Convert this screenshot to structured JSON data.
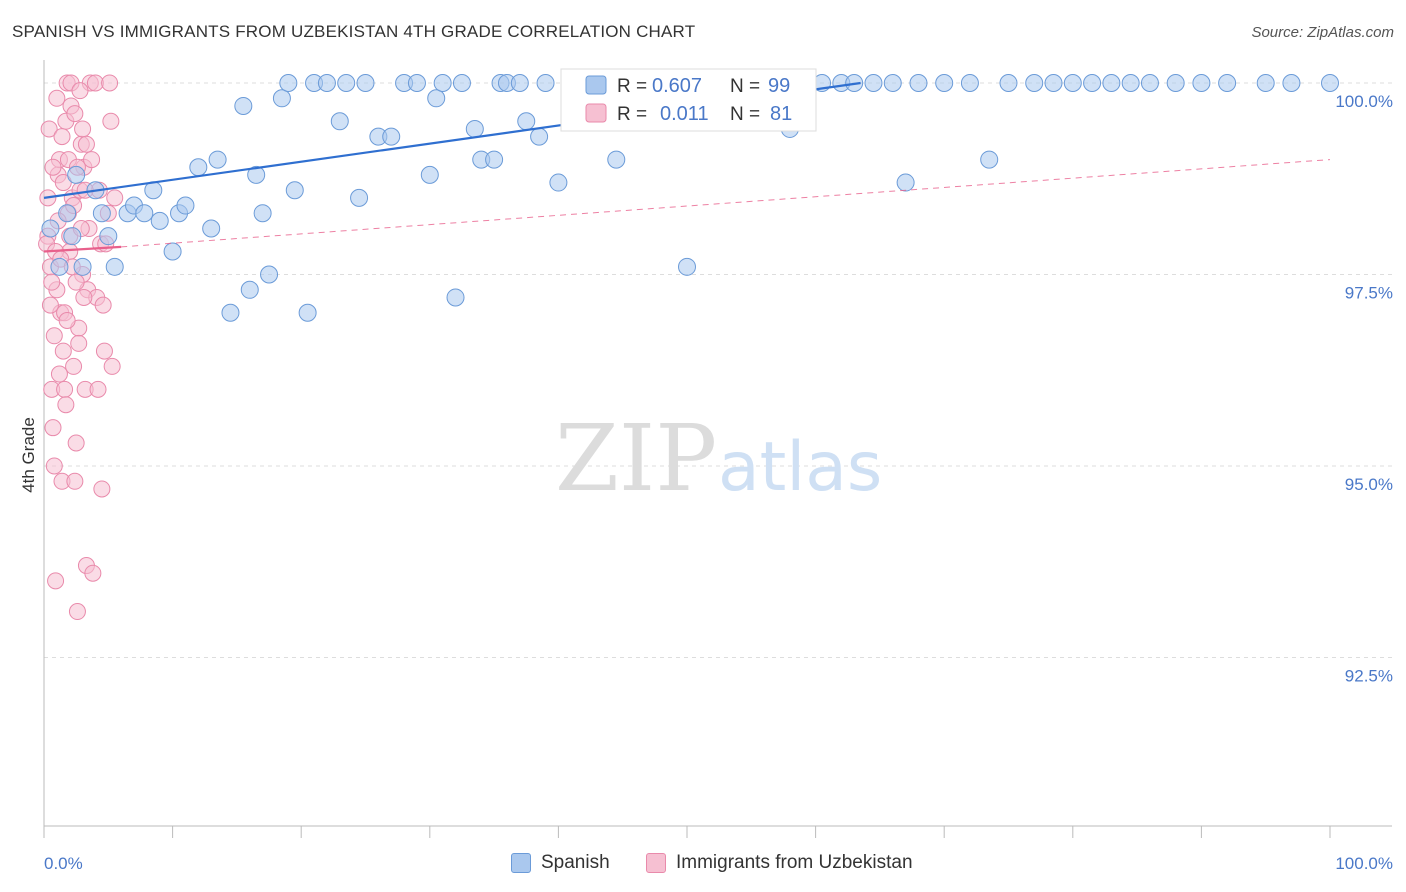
{
  "title": "SPANISH VS IMMIGRANTS FROM UZBEKISTAN 4TH GRADE CORRELATION CHART",
  "source": "Source: ZipAtlas.com",
  "watermark": {
    "zip": "ZIP",
    "atlas": "atlas"
  },
  "colors": {
    "blue_fill": "#aac8ee",
    "blue_stroke": "#6b9bd8",
    "blue_line": "#2f6fd0",
    "pink_fill": "#f6c0d2",
    "pink_stroke": "#e98aab",
    "pink_line": "#e8608c",
    "axis_text": "#4a78c8",
    "grid": "#dddddd"
  },
  "legend": {
    "r_label": "R =",
    "n_label": "N =",
    "series": [
      {
        "name": "Spanish",
        "r": "0.607",
        "n": "99"
      },
      {
        "name": "Immigrants from Uzbekistan",
        "r": "0.011",
        "n": "81"
      }
    ]
  },
  "chart_data": {
    "type": "scatter",
    "title": "SPANISH VS IMMIGRANTS FROM UZBEKISTAN 4TH GRADE CORRELATION CHART",
    "xlabel": "",
    "ylabel": "4th Grade",
    "xlim": [
      0,
      100
    ],
    "ylim": [
      90.3,
      100.3
    ],
    "x_tick_labels": [
      "0.0%",
      "100.0%"
    ],
    "y_ticks": [
      92.5,
      95.0,
      97.5,
      100.0
    ],
    "y_tick_labels": [
      "92.5%",
      "95.0%",
      "97.5%",
      "100.0%"
    ],
    "grid": true,
    "legend_position": "top-center",
    "series": [
      {
        "name": "Spanish",
        "trend": {
          "x": [
            0,
            63.5
          ],
          "y": [
            98.5,
            100.0
          ],
          "style": "solid"
        },
        "points": [
          [
            0.5,
            98.1
          ],
          [
            1.2,
            97.6
          ],
          [
            1.8,
            98.3
          ],
          [
            2.2,
            98.0
          ],
          [
            2.5,
            98.8
          ],
          [
            3.0,
            97.6
          ],
          [
            4.0,
            98.6
          ],
          [
            4.5,
            98.3
          ],
          [
            5.0,
            98.0
          ],
          [
            5.5,
            97.6
          ],
          [
            6.5,
            98.3
          ],
          [
            7.0,
            98.4
          ],
          [
            7.8,
            98.3
          ],
          [
            8.5,
            98.6
          ],
          [
            9.0,
            98.2
          ],
          [
            10.0,
            97.8
          ],
          [
            10.5,
            98.3
          ],
          [
            11.0,
            98.4
          ],
          [
            12.0,
            98.9
          ],
          [
            13.0,
            98.1
          ],
          [
            13.5,
            99.0
          ],
          [
            14.5,
            97.0
          ],
          [
            15.5,
            99.7
          ],
          [
            16.0,
            97.3
          ],
          [
            16.5,
            98.8
          ],
          [
            17.0,
            98.3
          ],
          [
            17.5,
            97.5
          ],
          [
            18.5,
            99.8
          ],
          [
            19.0,
            100.0
          ],
          [
            19.5,
            98.6
          ],
          [
            20.5,
            97.0
          ],
          [
            21.0,
            100.0
          ],
          [
            22.0,
            100.0
          ],
          [
            23.0,
            99.5
          ],
          [
            23.5,
            100.0
          ],
          [
            24.5,
            98.5
          ],
          [
            25.0,
            100.0
          ],
          [
            26.0,
            99.3
          ],
          [
            27.0,
            99.3
          ],
          [
            28.0,
            100.0
          ],
          [
            29.0,
            100.0
          ],
          [
            30.0,
            98.8
          ],
          [
            30.5,
            99.8
          ],
          [
            31.0,
            100.0
          ],
          [
            32.0,
            97.2
          ],
          [
            32.5,
            100.0
          ],
          [
            33.5,
            99.4
          ],
          [
            34.0,
            99.0
          ],
          [
            35.0,
            99.0
          ],
          [
            35.5,
            100.0
          ],
          [
            36.0,
            100.0
          ],
          [
            37.0,
            100.0
          ],
          [
            37.5,
            99.5
          ],
          [
            38.5,
            99.3
          ],
          [
            39.0,
            100.0
          ],
          [
            40.0,
            98.7
          ],
          [
            41.0,
            100.0
          ],
          [
            42.0,
            99.6
          ],
          [
            42.5,
            100.0
          ],
          [
            43.5,
            100.0
          ],
          [
            44.5,
            99.0
          ],
          [
            45.0,
            100.0
          ],
          [
            46.0,
            100.0
          ],
          [
            47.0,
            100.0
          ],
          [
            47.5,
            100.0
          ],
          [
            48.0,
            100.0
          ],
          [
            49.0,
            100.0
          ],
          [
            50.0,
            97.6
          ],
          [
            51.0,
            99.8
          ],
          [
            52.0,
            100.0
          ],
          [
            53.5,
            100.0
          ],
          [
            55.0,
            100.0
          ],
          [
            56.5,
            100.0
          ],
          [
            58.0,
            99.4
          ],
          [
            59.0,
            100.0
          ],
          [
            60.5,
            100.0
          ],
          [
            62.0,
            100.0
          ],
          [
            63.0,
            100.0
          ],
          [
            64.5,
            100.0
          ],
          [
            66.0,
            100.0
          ],
          [
            67.0,
            98.7
          ],
          [
            68.0,
            100.0
          ],
          [
            70.0,
            100.0
          ],
          [
            72.0,
            100.0
          ],
          [
            73.5,
            99.0
          ],
          [
            75.0,
            100.0
          ],
          [
            77.0,
            100.0
          ],
          [
            78.5,
            100.0
          ],
          [
            80.0,
            100.0
          ],
          [
            81.5,
            100.0
          ],
          [
            83.0,
            100.0
          ],
          [
            84.5,
            100.0
          ],
          [
            86.0,
            100.0
          ],
          [
            88.0,
            100.0
          ],
          [
            90.0,
            100.0
          ],
          [
            92.0,
            100.0
          ],
          [
            95.0,
            100.0
          ],
          [
            97.0,
            100.0
          ],
          [
            100.0,
            100.0
          ]
        ]
      },
      {
        "name": "Immigrants from Uzbekistan",
        "trend_solid": {
          "x": [
            0,
            6
          ],
          "y": [
            97.8,
            97.86
          ],
          "style": "solid"
        },
        "trend_dashed": {
          "x": [
            6,
            100
          ],
          "y": [
            97.86,
            99.0
          ],
          "style": "dashed"
        },
        "points": [
          [
            0.3,
            98.0
          ],
          [
            0.5,
            97.6
          ],
          [
            0.6,
            96.0
          ],
          [
            0.7,
            95.5
          ],
          [
            0.8,
            95.0
          ],
          [
            0.9,
            93.5
          ],
          [
            1.0,
            97.3
          ],
          [
            1.1,
            98.8
          ],
          [
            1.2,
            99.0
          ],
          [
            1.3,
            97.0
          ],
          [
            1.4,
            94.8
          ],
          [
            1.5,
            96.5
          ],
          [
            1.6,
            96.0
          ],
          [
            1.7,
            99.5
          ],
          [
            1.8,
            100.0
          ],
          [
            1.9,
            98.3
          ],
          [
            2.0,
            97.8
          ],
          [
            2.1,
            99.7
          ],
          [
            2.2,
            98.5
          ],
          [
            2.3,
            96.3
          ],
          [
            2.4,
            94.8
          ],
          [
            2.5,
            95.3
          ],
          [
            2.6,
            93.1
          ],
          [
            2.7,
            96.8
          ],
          [
            2.8,
            98.6
          ],
          [
            2.9,
            99.2
          ],
          [
            3.0,
            97.5
          ],
          [
            3.1,
            98.9
          ],
          [
            3.2,
            96.0
          ],
          [
            3.3,
            93.7
          ],
          [
            3.4,
            97.3
          ],
          [
            3.5,
            98.1
          ],
          [
            3.6,
            100.0
          ],
          [
            3.7,
            99.0
          ],
          [
            3.8,
            93.6
          ],
          [
            4.0,
            100.0
          ],
          [
            4.1,
            97.2
          ],
          [
            4.2,
            96.0
          ],
          [
            4.3,
            98.6
          ],
          [
            4.4,
            97.9
          ],
          [
            4.5,
            94.7
          ],
          [
            4.6,
            97.1
          ],
          [
            4.7,
            96.5
          ],
          [
            4.8,
            97.9
          ],
          [
            5.0,
            98.3
          ],
          [
            5.1,
            100.0
          ],
          [
            5.2,
            99.5
          ],
          [
            5.3,
            96.3
          ],
          [
            5.5,
            98.5
          ],
          [
            0.2,
            97.9
          ],
          [
            0.3,
            98.5
          ],
          [
            0.4,
            99.4
          ],
          [
            0.5,
            97.1
          ],
          [
            0.6,
            97.4
          ],
          [
            0.7,
            98.9
          ],
          [
            0.8,
            96.7
          ],
          [
            0.9,
            97.8
          ],
          [
            1.0,
            99.8
          ],
          [
            1.1,
            98.2
          ],
          [
            1.2,
            96.2
          ],
          [
            1.3,
            97.7
          ],
          [
            1.4,
            99.3
          ],
          [
            1.5,
            98.7
          ],
          [
            1.6,
            97.0
          ],
          [
            1.7,
            95.8
          ],
          [
            1.8,
            96.9
          ],
          [
            1.9,
            99.0
          ],
          [
            2.0,
            98.0
          ],
          [
            2.1,
            100.0
          ],
          [
            2.2,
            97.6
          ],
          [
            2.3,
            98.4
          ],
          [
            2.4,
            99.6
          ],
          [
            2.5,
            97.4
          ],
          [
            2.6,
            98.9
          ],
          [
            2.7,
            96.6
          ],
          [
            2.8,
            99.9
          ],
          [
            2.9,
            98.1
          ],
          [
            3.0,
            99.4
          ],
          [
            3.1,
            97.2
          ],
          [
            3.2,
            98.6
          ],
          [
            3.3,
            99.2
          ]
        ]
      }
    ]
  }
}
